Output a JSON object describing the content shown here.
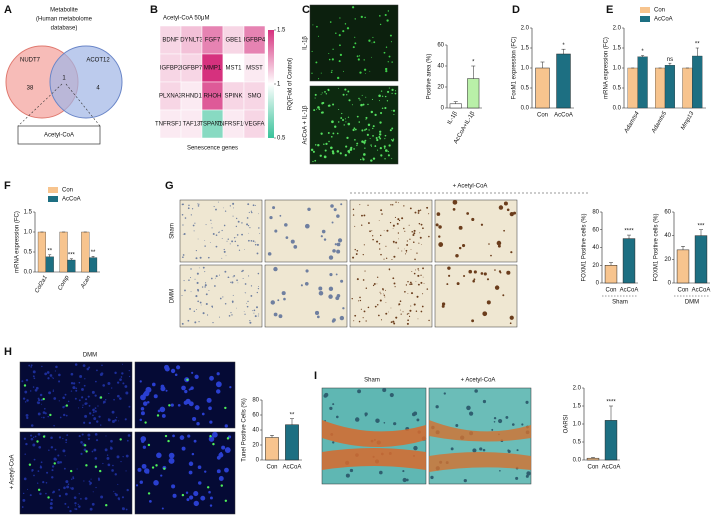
{
  "panel_letters": [
    "A",
    "B",
    "C",
    "D",
    "E",
    "F",
    "G",
    "H",
    "I"
  ],
  "venn": {
    "title_lines": [
      "Metabolite",
      "(Human metabolome",
      "database)"
    ],
    "left": "NUDT7",
    "right": "ACOT12",
    "left_only": "38",
    "both": "1",
    "right_only": "4",
    "result": "Acetyl-CoA"
  },
  "heatmap": {
    "title": "Acetyl-CoA 50μM",
    "xlabel": "Senescence genes",
    "colorbar_label": "RQ(Fold of Control)",
    "colorbar_ticks": [
      1.5,
      1,
      0.5
    ],
    "clim": [
      0.5,
      1.5
    ],
    "genes": [
      [
        "BDNF",
        "DYNLT3",
        "FGF7",
        "GBE1",
        "IGFBP4"
      ],
      [
        "IGFBP2",
        "IGFBP7",
        "MMP1",
        "MST1",
        "MSST"
      ],
      [
        "PLXNA3",
        "RHND1",
        "RHOH",
        "SPINK",
        "SMO"
      ],
      [
        "TNFRSF1B",
        "TAF13",
        "TSPAN13",
        "TNFRSF10B",
        "VEGFA"
      ]
    ],
    "values": [
      [
        1.1,
        1.15,
        1.3,
        1.1,
        1.3
      ],
      [
        1.1,
        1.1,
        1.5,
        1.0,
        1.05
      ],
      [
        1.1,
        1.05,
        1.4,
        1.1,
        1.1
      ],
      [
        1.05,
        1.05,
        0.7,
        1.05,
        1.1
      ]
    ]
  },
  "images": {
    "c_top": "IL-1β",
    "c_bottom": "AcCoA + IL-1β",
    "g_top": "Sham",
    "g_bottom": "DMM",
    "g_treat": "+ Acetyl-CoA",
    "h_title": "DMM",
    "h_treat": "+ Acetyl-CoA",
    "i_left": "Sham",
    "i_right": "+ Acetyl-CoA"
  },
  "chart_data": [
    {
      "type": "bar",
      "ylabel": "Positive area (%)",
      "categories": [
        "IL-1β",
        "AcCoA+IL-1β"
      ],
      "values": [
        4,
        28
      ],
      "errors": [
        2,
        12
      ],
      "colors": [
        "#ffffff",
        "#b9f0a8"
      ],
      "ylim": [
        0,
        60
      ],
      "yticks": [
        0,
        20,
        40,
        60
      ],
      "annotations": [
        "*"
      ]
    },
    {
      "type": "bar",
      "ylabel": "FoxM1 expression (FC)",
      "categories": [
        "Con",
        "AcCoA"
      ],
      "values": [
        1.0,
        1.35
      ],
      "errors": [
        0.15,
        0.12
      ],
      "colors": [
        "#f7c48e",
        "#1d6f82"
      ],
      "ylim": [
        0,
        2
      ],
      "yticks": [
        {
          "value": 0,
          "label": "0.0"
        },
        {
          "value": 0.5,
          "label": "0.5"
        },
        {
          "value": 1,
          "label": "1.0"
        },
        {
          "value": 1.5,
          "label": "1.5"
        },
        {
          "value": 2,
          "label": "2.0"
        }
      ],
      "annotations": [
        "*"
      ]
    },
    {
      "type": "grouped-bar",
      "ylabel": "mRNA expression (FC)",
      "categories": [
        "Adamts4",
        "Adamts5",
        "Mmp13"
      ],
      "series": [
        {
          "name": "Con",
          "color": "#f7c48e",
          "values": [
            1,
            1,
            1
          ],
          "errors": [
            0,
            0,
            0
          ]
        },
        {
          "name": "AcCoA",
          "color": "#1d6f82",
          "values": [
            1.28,
            1.07,
            1.3
          ],
          "errors": [
            0.03,
            0.05,
            0.2
          ]
        }
      ],
      "ylim": [
        0,
        2
      ],
      "yticks": [
        {
          "value": 0,
          "label": "0.0"
        },
        {
          "value": 0.5,
          "label": "0.5"
        },
        {
          "value": 1,
          "label": "1.0"
        },
        {
          "value": 1.5,
          "label": "1.5"
        },
        {
          "value": 2,
          "label": "2.0"
        }
      ],
      "annotations": [
        "*",
        "ns",
        "**"
      ]
    },
    {
      "type": "grouped-bar",
      "ylabel": "mRNA expression (FC)",
      "categories": [
        "Col2a1",
        "Comp",
        "Acan"
      ],
      "series": [
        {
          "name": "Con",
          "color": "#f7c48e",
          "values": [
            1,
            1,
            1
          ],
          "errors": [
            0,
            0,
            0
          ]
        },
        {
          "name": "AcCoA",
          "color": "#1d6f82",
          "values": [
            0.38,
            0.3,
            0.36
          ],
          "errors": [
            0.05,
            0.03,
            0.03
          ]
        }
      ],
      "ylim": [
        0,
        1.5
      ],
      "yticks": [
        {
          "value": 0,
          "label": "0.0"
        },
        {
          "value": 0.5,
          "label": "0.5"
        },
        {
          "value": 1,
          "label": "1.0"
        },
        {
          "value": 1.5,
          "label": "1.5"
        }
      ],
      "annotations": [
        "**",
        "***",
        "**"
      ]
    },
    {
      "type": "bar",
      "ylabel": "FOXM1 Positive cells (%)",
      "xlabel": "Sham",
      "categories": [
        "Con",
        "AcCoA"
      ],
      "values": [
        20,
        50
      ],
      "errors": [
        3,
        4
      ],
      "colors": [
        "#f7c48e",
        "#1d6f82"
      ],
      "ylim": [
        0,
        80
      ],
      "yticks": [
        0,
        20,
        40,
        60,
        80
      ],
      "annotations": [
        "****"
      ]
    },
    {
      "type": "bar",
      "ylabel": "FOXM1 Positive cells (%)",
      "xlabel": "DMM",
      "categories": [
        "Con",
        "AcCoA"
      ],
      "values": [
        28,
        40
      ],
      "errors": [
        3,
        5
      ],
      "colors": [
        "#f7c48e",
        "#1d6f82"
      ],
      "ylim": [
        0,
        60
      ],
      "yticks": [
        0,
        20,
        40,
        60
      ],
      "annotations": [
        "***"
      ]
    },
    {
      "type": "bar",
      "ylabel": "Tunel Positive Cells (%)",
      "categories": [
        "Con",
        "AcCoA"
      ],
      "values": [
        30,
        47
      ],
      "errors": [
        3,
        8
      ],
      "colors": [
        "#f7c48e",
        "#1d6f82"
      ],
      "ylim": [
        0,
        80
      ],
      "yticks": [
        0,
        20,
        40,
        60,
        80
      ],
      "annotations": [
        "**"
      ]
    },
    {
      "type": "bar",
      "ylabel": "OARSI",
      "categories": [
        "Con",
        "AcCoA"
      ],
      "values": [
        0.05,
        1.1
      ],
      "errors": [
        0.02,
        0.4
      ],
      "colors": [
        "#f7c48e",
        "#1d6f82"
      ],
      "ylim": [
        0,
        2
      ],
      "yticks": [
        {
          "value": 0,
          "label": "0.0"
        },
        {
          "value": 0.5,
          "label": "0.5"
        },
        {
          "value": 1,
          "label": "1.0"
        },
        {
          "value": 1.5,
          "label": "1.5"
        },
        {
          "value": 2,
          "label": "2.0"
        }
      ],
      "annotations": [
        "****"
      ]
    }
  ]
}
